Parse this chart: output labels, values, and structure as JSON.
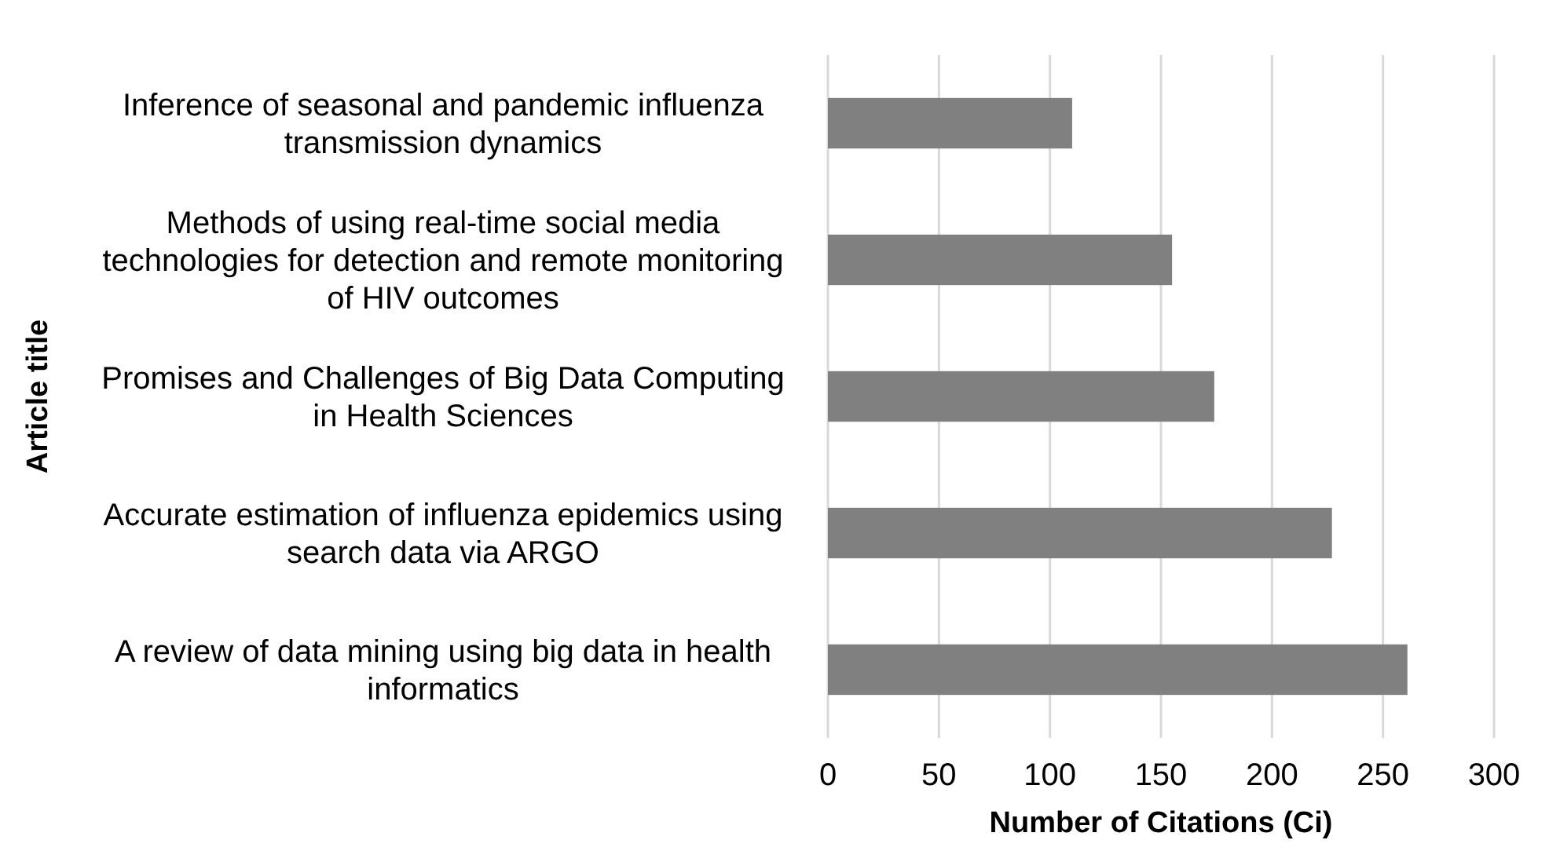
{
  "chart_data": {
    "type": "bar",
    "orientation": "horizontal",
    "xlabel": "Number of Citations (Ci)",
    "ylabel": "Article title",
    "categories": [
      "Inference of seasonal and pandemic influenza transmission dynamics",
      "Methods of using real-time social media technologies for detection and remote monitoring of HIV outcomes",
      "Promises and Challenges of Big Data Computing in Health Sciences",
      "Accurate estimation of influenza epidemics using search data via ARGO",
      "A review of data mining using big data in health informatics"
    ],
    "values": [
      110,
      155,
      174,
      227,
      261
    ],
    "color": "#808080",
    "xlim": [
      0,
      300
    ],
    "xticks": [
      0,
      50,
      100,
      150,
      200,
      250,
      300
    ],
    "grid": "x"
  }
}
